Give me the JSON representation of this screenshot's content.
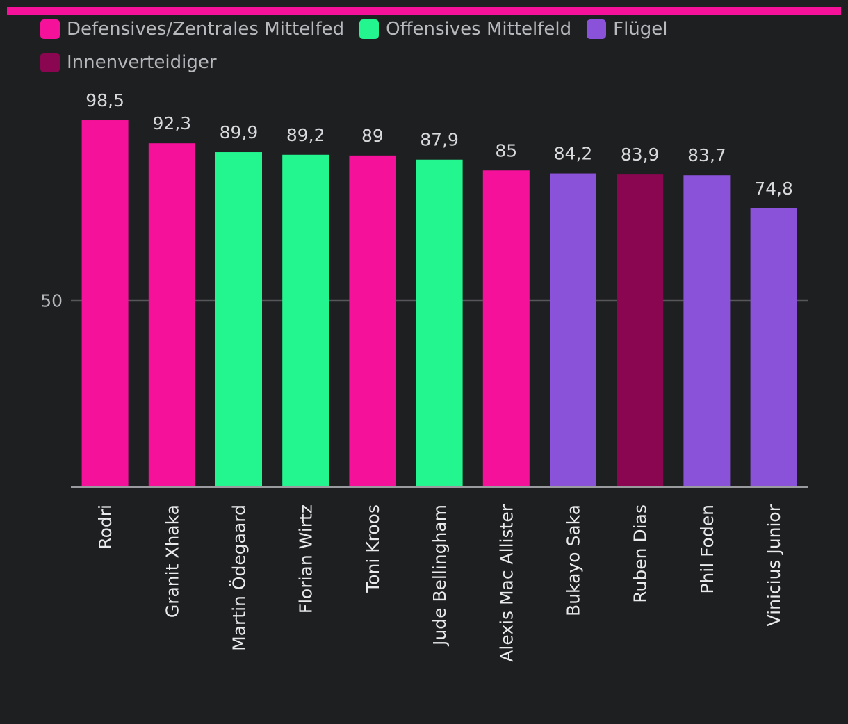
{
  "colors": {
    "background": "#1e1f21",
    "accent": "#f5119a",
    "gridline": "#55575b",
    "axis": "#9a9b9e"
  },
  "legend": [
    {
      "label": "Defensives/Zentrales Mittelfed",
      "color": "#f5119a"
    },
    {
      "label": "Offensives Mittelfeld",
      "color": "#23f58f"
    },
    {
      "label": "Flügel",
      "color": "#8952d8"
    },
    {
      "label": "Innenverteidiger",
      "color": "#8b0650"
    }
  ],
  "chart_data": {
    "type": "bar",
    "title": "",
    "xlabel": "",
    "ylabel": "",
    "ylim": [
      0,
      100
    ],
    "yticks": [
      50
    ],
    "grid": true,
    "legend_position": "top-left",
    "categories": [
      "Rodri",
      "Granit Xhaka",
      "Martin Ödegaard",
      "Florian Wirtz",
      "Toni Kroos",
      "Jude Bellingham",
      "Alexis Mac Allister",
      "Bukayo Saka",
      "Ruben Dias",
      "Phil Foden",
      "Vinicius Junior"
    ],
    "values": [
      98.5,
      92.3,
      89.9,
      89.2,
      89,
      87.9,
      85,
      84.2,
      83.9,
      83.7,
      74.8
    ],
    "value_labels": [
      "98,5",
      "92,3",
      "89,9",
      "89,2",
      "89",
      "87,9",
      "85",
      "84,2",
      "83,9",
      "83,7",
      "74,8"
    ],
    "groups": [
      "Defensives/Zentrales Mittelfed",
      "Defensives/Zentrales Mittelfed",
      "Offensives Mittelfeld",
      "Offensives Mittelfeld",
      "Defensives/Zentrales Mittelfed",
      "Offensives Mittelfeld",
      "Defensives/Zentrales Mittelfed",
      "Flügel",
      "Innenverteidiger",
      "Flügel",
      "Flügel"
    ]
  }
}
